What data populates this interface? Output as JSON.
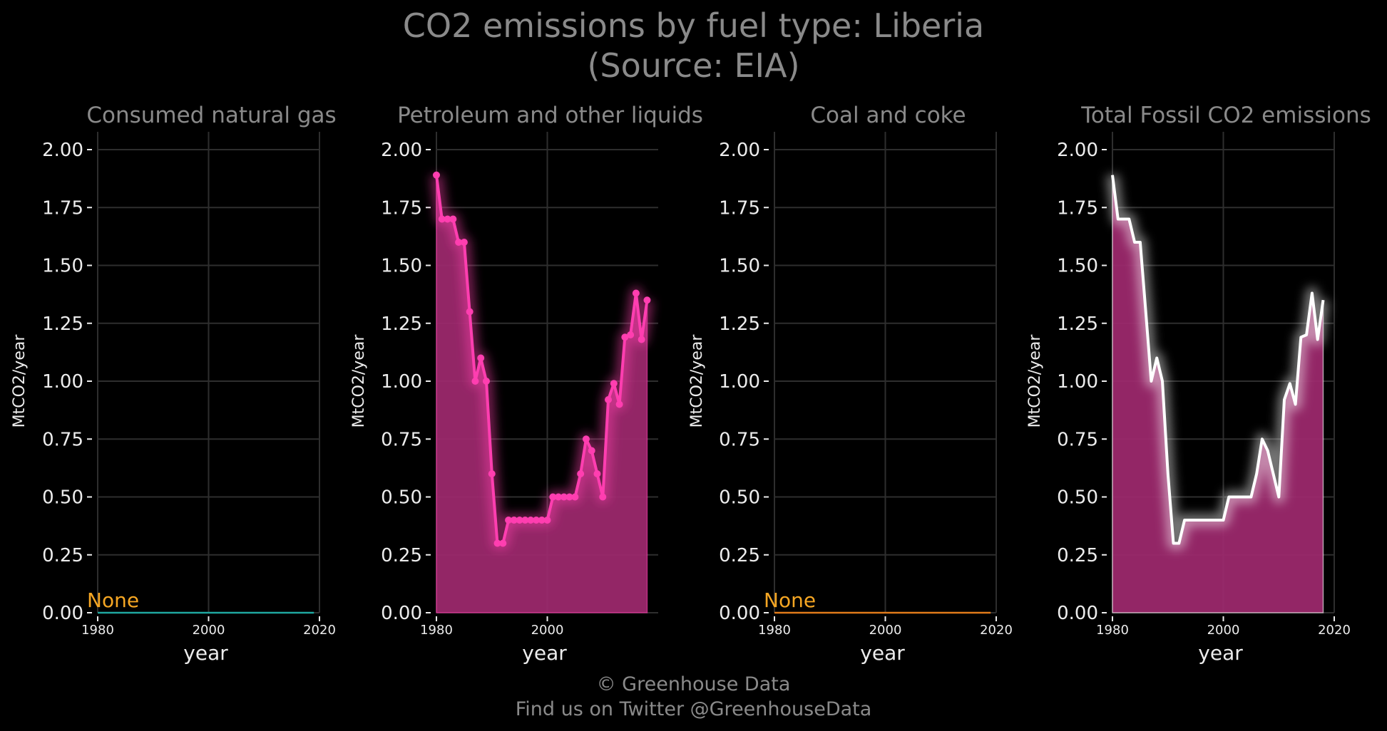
{
  "title_line1": "CO2 emissions by fuel type: Liberia",
  "title_line2": "(Source: EIA)",
  "footer_line1": "© Greenhouse Data",
  "footer_line2": "Find us on Twitter @GreenhouseData",
  "chart_data": [
    {
      "type": "line",
      "title": "Consumed natural gas",
      "xlabel": "year",
      "ylabel": "MtCO2/year",
      "xlim": [
        1980,
        2020
      ],
      "ylim": [
        0,
        2
      ],
      "xticks": [
        "1980",
        "2000",
        "2020"
      ],
      "yticks": [
        "0.00",
        "0.25",
        "0.50",
        "0.75",
        "1.00",
        "1.25",
        "1.50",
        "1.75",
        "2.00"
      ],
      "annotation": "None",
      "color": "#1fa8a0",
      "annotation_color": "#f5a623",
      "series": [
        {
          "x": [
            1980,
            2019
          ],
          "y": [
            0,
            0
          ]
        }
      ]
    },
    {
      "type": "area",
      "title": "Petroleum and other liquids",
      "xlabel": "year",
      "ylabel": "MtCO2/year",
      "xlim": [
        1980,
        2020
      ],
      "ylim": [
        0,
        2
      ],
      "xticks": [
        "1980",
        "2000"
      ],
      "yticks": [
        "0.00",
        "0.25",
        "0.50",
        "0.75",
        "1.00",
        "1.25",
        "1.50",
        "1.75",
        "2.00"
      ],
      "color": "#ff3eb0",
      "fill_color": "#a0296f",
      "markers": true,
      "series": [
        {
          "x": [
            1980,
            1981,
            1982,
            1983,
            1984,
            1985,
            1986,
            1987,
            1988,
            1989,
            1990,
            1991,
            1992,
            1993,
            1994,
            1995,
            1996,
            1997,
            1998,
            1999,
            2000,
            2001,
            2002,
            2003,
            2004,
            2005,
            2006,
            2007,
            2008,
            2009,
            2010,
            2011,
            2012,
            2013,
            2014,
            2015,
            2016,
            2017,
            2018
          ],
          "y": [
            1.89,
            1.7,
            1.7,
            1.7,
            1.6,
            1.6,
            1.3,
            1.0,
            1.1,
            1.0,
            0.6,
            0.3,
            0.3,
            0.4,
            0.4,
            0.4,
            0.4,
            0.4,
            0.4,
            0.4,
            0.4,
            0.5,
            0.5,
            0.5,
            0.5,
            0.5,
            0.6,
            0.75,
            0.7,
            0.6,
            0.5,
            0.92,
            0.99,
            0.9,
            1.19,
            1.2,
            1.38,
            1.18,
            1.35
          ]
        }
      ]
    },
    {
      "type": "line",
      "title": "Coal and coke",
      "xlabel": "year",
      "ylabel": "MtCO2/year",
      "xlim": [
        1980,
        2020
      ],
      "ylim": [
        0,
        2
      ],
      "xticks": [
        "1980",
        "2000",
        "2020"
      ],
      "yticks": [
        "0.00",
        "0.25",
        "0.50",
        "0.75",
        "1.00",
        "1.25",
        "1.50",
        "1.75",
        "2.00"
      ],
      "annotation": "None",
      "color": "#e07b1a",
      "annotation_color": "#f5a623",
      "series": [
        {
          "x": [
            1980,
            2019
          ],
          "y": [
            0,
            0
          ]
        }
      ]
    },
    {
      "type": "area",
      "title": "Total Fossil CO2 emissions",
      "xlabel": "year",
      "ylabel": "MtCO2/year",
      "xlim": [
        1980,
        2020
      ],
      "ylim": [
        0,
        2
      ],
      "xticks": [
        "1980",
        "2000",
        "2020"
      ],
      "yticks": [
        "0.00",
        "0.25",
        "0.50",
        "0.75",
        "1.00",
        "1.25",
        "1.50",
        "1.75",
        "2.00"
      ],
      "color": "#ffffff",
      "fill_color": "#a0296f",
      "markers": false,
      "series": [
        {
          "x": [
            1980,
            1981,
            1982,
            1983,
            1984,
            1985,
            1986,
            1987,
            1988,
            1989,
            1990,
            1991,
            1992,
            1993,
            1994,
            1995,
            1996,
            1997,
            1998,
            1999,
            2000,
            2001,
            2002,
            2003,
            2004,
            2005,
            2006,
            2007,
            2008,
            2009,
            2010,
            2011,
            2012,
            2013,
            2014,
            2015,
            2016,
            2017,
            2018
          ],
          "y": [
            1.89,
            1.7,
            1.7,
            1.7,
            1.6,
            1.6,
            1.3,
            1.0,
            1.1,
            1.0,
            0.6,
            0.3,
            0.3,
            0.4,
            0.4,
            0.4,
            0.4,
            0.4,
            0.4,
            0.4,
            0.4,
            0.5,
            0.5,
            0.5,
            0.5,
            0.5,
            0.6,
            0.75,
            0.7,
            0.6,
            0.5,
            0.92,
            0.99,
            0.9,
            1.19,
            1.2,
            1.38,
            1.18,
            1.35
          ]
        }
      ]
    }
  ]
}
